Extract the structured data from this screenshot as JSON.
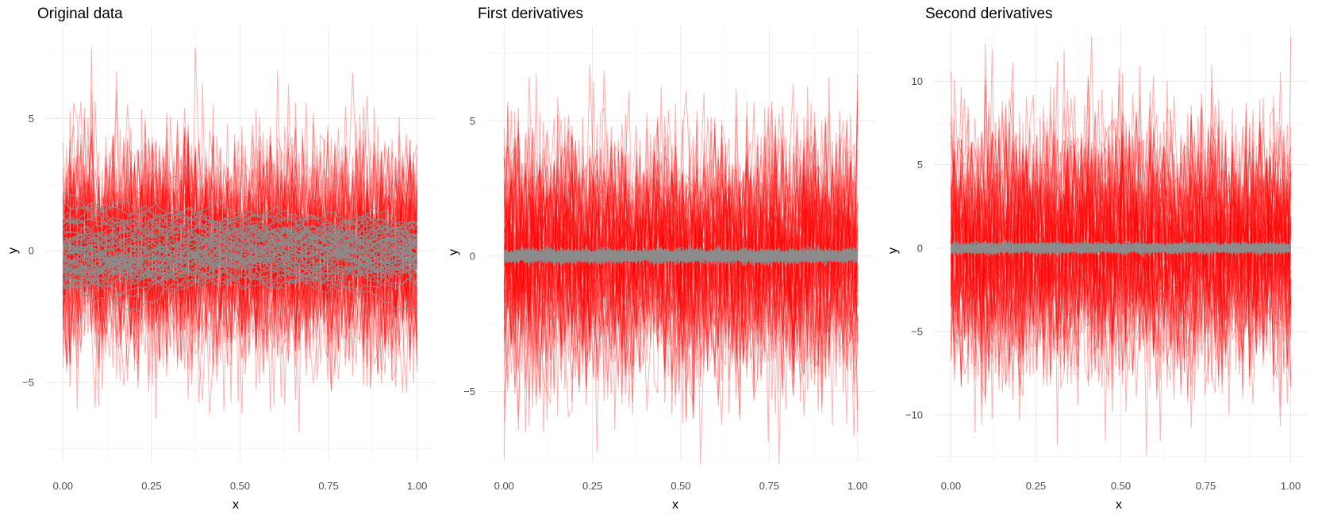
{
  "chart_data": [
    {
      "type": "line",
      "title": "Original data",
      "xlabel": "x",
      "ylabel": "y",
      "xlim": [
        -0.05,
        1.05
      ],
      "ylim": [
        -8.0,
        8.5
      ],
      "x_ticks": [
        0,
        0.25,
        0.5,
        0.75,
        1
      ],
      "x_tick_labels": [
        "0.00",
        "0.25",
        "0.50",
        "0.75",
        "1.00"
      ],
      "y_ticks": [
        -5,
        0,
        5
      ],
      "y_tick_labels": [
        "−5",
        "0",
        "5"
      ],
      "grid": true,
      "series": [
        {
          "color": "#ff0000",
          "opacity": 0.3,
          "line_count": 60,
          "points_per_line": 100,
          "approx_sd": 2.0,
          "observed_min": -7.9,
          "observed_max": 7.7,
          "noise": "white"
        },
        {
          "color": "#8c8c8c",
          "opacity": 0.9,
          "line_count": 60,
          "points_per_line": 100,
          "approx_sd": 0.8,
          "observed_min": -2.9,
          "observed_max": 3.7,
          "noise": "random-walk"
        }
      ]
    },
    {
      "type": "line",
      "title": "First derivatives",
      "xlabel": "x",
      "ylabel": "y",
      "xlim": [
        -0.05,
        1.05
      ],
      "ylim": [
        -7.6,
        8.5
      ],
      "x_ticks": [
        0,
        0.25,
        0.5,
        0.75,
        1
      ],
      "x_tick_labels": [
        "0.00",
        "0.25",
        "0.50",
        "0.75",
        "1.00"
      ],
      "y_ticks": [
        -5,
        0,
        5
      ],
      "y_tick_labels": [
        "−5",
        "0",
        "5"
      ],
      "grid": true,
      "series": [
        {
          "color": "#ff0000",
          "opacity": 0.3,
          "line_count": 60,
          "points_per_line": 100,
          "approx_sd": 2.2,
          "observed_min": -7.7,
          "observed_max": 8.0,
          "noise": "white"
        },
        {
          "color": "#8c8c8c",
          "opacity": 0.9,
          "line_count": 60,
          "points_per_line": 100,
          "approx_sd": 0.12,
          "observed_min": -0.4,
          "observed_max": 0.4,
          "noise": "white"
        }
      ]
    },
    {
      "type": "line",
      "title": "Second derivatives",
      "xlabel": "x",
      "ylabel": "y",
      "xlim": [
        -0.05,
        1.05
      ],
      "ylim": [
        -12.8,
        13.3
      ],
      "x_ticks": [
        0,
        0.25,
        0.5,
        0.75,
        1
      ],
      "x_tick_labels": [
        "0.00",
        "0.25",
        "0.50",
        "0.75",
        "1.00"
      ],
      "y_ticks": [
        -10,
        -5,
        0,
        5,
        10
      ],
      "y_tick_labels": [
        "−10",
        "−5",
        "0",
        "5",
        "10"
      ],
      "grid": true,
      "series": [
        {
          "color": "#ff0000",
          "opacity": 0.3,
          "line_count": 60,
          "points_per_line": 100,
          "approx_sd": 3.6,
          "observed_min": -12.4,
          "observed_max": 12.7,
          "noise": "white"
        },
        {
          "color": "#8c8c8c",
          "opacity": 0.9,
          "line_count": 60,
          "points_per_line": 100,
          "approx_sd": 0.15,
          "observed_min": -0.5,
          "observed_max": 0.5,
          "noise": "white"
        }
      ]
    }
  ]
}
